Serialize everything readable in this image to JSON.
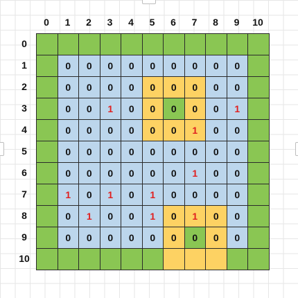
{
  "board": {
    "columns": [
      "0",
      "1",
      "2",
      "3",
      "4",
      "5",
      "6",
      "7",
      "8",
      "9",
      "10"
    ],
    "rows": [
      "0",
      "1",
      "2",
      "3",
      "4",
      "5",
      "6",
      "7",
      "8",
      "9",
      "10"
    ],
    "colors": {
      "G": "#8ac653",
      "B": "#bcd6ec",
      "Y": "#fdd263"
    },
    "color_grid": [
      "GGGGGGGGGGG",
      "GBBBBBBBBBG",
      "GBBBBYYYBBG",
      "GBBBBYGYBBG",
      "GBBBBYYYBBG",
      "GBBBBBBBBBG",
      "GBBBBBBBBBG",
      "GBBBBBBBBBG",
      "GBBBBBYYYBG",
      "GBBBBBYGYBG",
      "GGGGGGYYYGG"
    ],
    "values": [
      [
        null,
        null,
        null,
        null,
        null,
        null,
        null,
        null,
        null,
        null,
        null
      ],
      [
        null,
        "0",
        "0",
        "0",
        "0",
        "0",
        "0",
        "0",
        "0",
        "0",
        null
      ],
      [
        null,
        "0",
        "0",
        "0",
        "0",
        "0",
        "0",
        "0",
        "0",
        "0",
        null
      ],
      [
        null,
        "0",
        "0",
        "1",
        "0",
        "0",
        "0",
        "0",
        "0",
        "1",
        null
      ],
      [
        null,
        "0",
        "0",
        "0",
        "0",
        "0",
        "0",
        "1",
        "0",
        "0",
        null
      ],
      [
        null,
        "0",
        "0",
        "0",
        "0",
        "0",
        "0",
        "0",
        "0",
        "0",
        null
      ],
      [
        null,
        "0",
        "0",
        "0",
        "0",
        "0",
        "0",
        "1",
        "0",
        "0",
        null
      ],
      [
        null,
        "1",
        "0",
        "1",
        "0",
        "1",
        "0",
        "0",
        "0",
        "0",
        null
      ],
      [
        null,
        "0",
        "1",
        "0",
        "0",
        "1",
        "0",
        "1",
        "0",
        "0",
        null
      ],
      [
        null,
        "0",
        "0",
        "0",
        "0",
        "0",
        "0",
        "0",
        "0",
        "0",
        null
      ],
      [
        null,
        null,
        null,
        null,
        null,
        null,
        null,
        null,
        null,
        null,
        null
      ]
    ]
  }
}
